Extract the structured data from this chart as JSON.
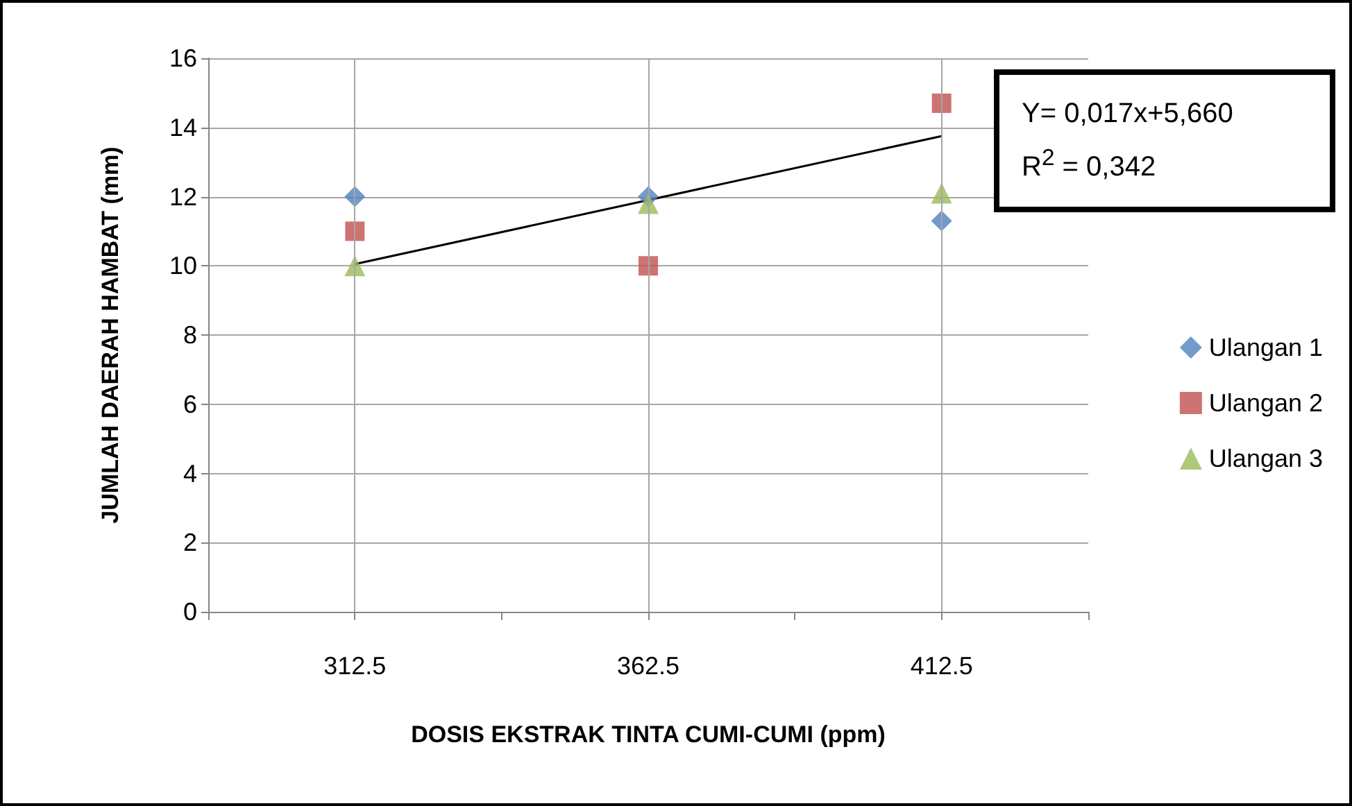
{
  "chart_data": {
    "type": "scatter",
    "xlabel": "DOSIS EKSTRAK TINTA CUMI-CUMI (ppm)",
    "ylabel": "JUMLAH DAERAH HAMBAT (mm)",
    "x": [
      312.5,
      362.5,
      412.5
    ],
    "series": [
      {
        "name": "Ulangan 1",
        "color": "#4f81bd",
        "marker": "diamond",
        "values": [
          12,
          12,
          11.3
        ]
      },
      {
        "name": "Ulangan 2",
        "color": "#c0504d",
        "marker": "square",
        "values": [
          11,
          10,
          14.7
        ]
      },
      {
        "name": "Ulangan 3",
        "color": "#9bbb59",
        "marker": "triangle",
        "values": [
          10,
          11.8,
          12.1
        ]
      },
      {
        "type": "line",
        "color": "#000000",
        "marker": "none",
        "x": [
          312.5,
          412.5
        ],
        "values": [
          10.05,
          13.75
        ]
      }
    ],
    "xlim": [
      287.5,
      437.5
    ],
    "xticks": [
      {
        "value": 287.5,
        "label": null
      },
      312.5,
      {
        "value": 337.5,
        "label": null
      },
      362.5,
      {
        "value": 387.5,
        "label": null
      },
      412.5,
      {
        "value": 437.5,
        "label": null
      }
    ],
    "ylim": [
      0,
      16
    ],
    "yticks": [
      0,
      2,
      4,
      6,
      8,
      10,
      12,
      14,
      16
    ],
    "grid": true,
    "legend": "right",
    "annotations": [
      "Y= 0,017x+5,660",
      "R$^{2}$ = 0,342"
    ]
  }
}
